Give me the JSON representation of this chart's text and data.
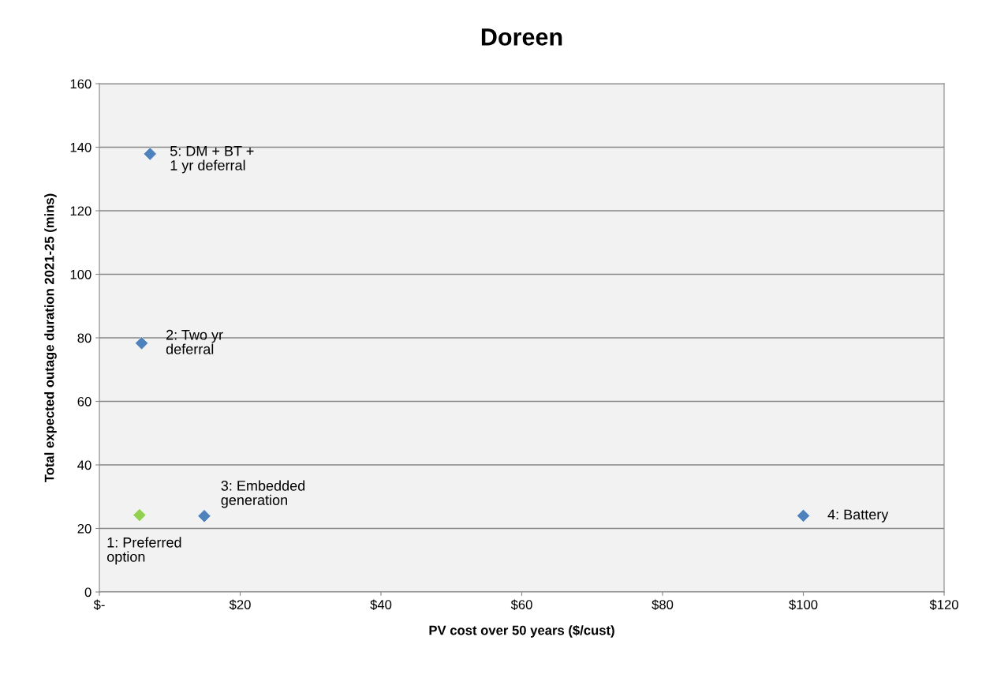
{
  "chart_data": {
    "type": "scatter",
    "title": "Doreen",
    "xlabel": "PV cost over 50 years ($/cust)",
    "ylabel": "Total expected outage duration 2021-25 (mins)",
    "x": [
      5.7,
      6.0,
      14.9,
      100,
      7.2
    ],
    "values": [
      24.2,
      78.3,
      23.9,
      24,
      137.9
    ],
    "colors": [
      "#92d050",
      "#4f81bd",
      "#4f81bd",
      "#4f81bd",
      "#4f81bd"
    ],
    "marker": "diamond",
    "grid": "y",
    "xlim": [
      0,
      120
    ],
    "xticks": [
      {
        "value": 0,
        "label": "$-"
      },
      {
        "value": 20,
        "label": "$20"
      },
      {
        "value": 40,
        "label": "$40"
      },
      {
        "value": 60,
        "label": "$60"
      },
      {
        "value": 80,
        "label": "$80"
      },
      {
        "value": 100,
        "label": "$100"
      },
      {
        "value": 120,
        "label": "$120"
      }
    ],
    "ylim": [
      0,
      160
    ],
    "yticks": [
      0,
      20,
      40,
      60,
      80,
      100,
      120,
      140,
      160
    ],
    "annotations": [
      {
        "text": "1: Preferred\noption",
        "x": 5.7,
        "y": 24.2
      },
      {
        "text": "2: Two yr\ndeferral",
        "x": 6.0,
        "y": 78.3
      },
      {
        "text": "3: Embedded\ngeneration",
        "x": 14.9,
        "y": 23.9
      },
      {
        "text": "4: Battery",
        "x": 100,
        "y": 24
      },
      {
        "text": "5: DM + BT +\n1 yr deferral",
        "x": 7.2,
        "y": 137.9
      }
    ]
  }
}
